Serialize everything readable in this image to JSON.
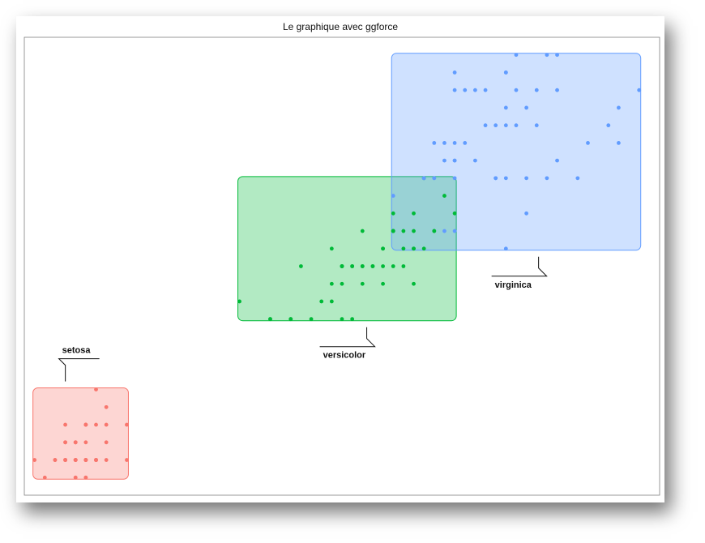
{
  "chart_data": {
    "type": "scatter",
    "title": "Le graphique avec ggforce",
    "xlabel": "",
    "ylabel": "",
    "xlim": [
      0.9,
      7.1
    ],
    "ylim": [
      0.0,
      2.6
    ],
    "grid": false,
    "legend": "none",
    "annotation": "labelled rectangle around each group",
    "series": [
      {
        "name": "setosa",
        "color": "#F8766D",
        "fill": "#F8766D",
        "label_position": "top-right",
        "points": [
          [
            1.4,
            0.2
          ],
          [
            1.4,
            0.2
          ],
          [
            1.3,
            0.2
          ],
          [
            1.5,
            0.2
          ],
          [
            1.4,
            0.2
          ],
          [
            1.7,
            0.4
          ],
          [
            1.4,
            0.3
          ],
          [
            1.5,
            0.2
          ],
          [
            1.4,
            0.2
          ],
          [
            1.5,
            0.1
          ],
          [
            1.5,
            0.2
          ],
          [
            1.6,
            0.2
          ],
          [
            1.4,
            0.1
          ],
          [
            1.1,
            0.1
          ],
          [
            1.2,
            0.2
          ],
          [
            1.5,
            0.4
          ],
          [
            1.3,
            0.4
          ],
          [
            1.4,
            0.3
          ],
          [
            1.7,
            0.3
          ],
          [
            1.5,
            0.3
          ],
          [
            1.7,
            0.2
          ],
          [
            1.5,
            0.4
          ],
          [
            1.0,
            0.2
          ],
          [
            1.7,
            0.5
          ],
          [
            1.9,
            0.2
          ],
          [
            1.6,
            0.2
          ],
          [
            1.6,
            0.4
          ],
          [
            1.5,
            0.2
          ],
          [
            1.4,
            0.2
          ],
          [
            1.6,
            0.2
          ],
          [
            1.6,
            0.2
          ],
          [
            1.5,
            0.4
          ],
          [
            1.5,
            0.1
          ],
          [
            1.4,
            0.2
          ],
          [
            1.5,
            0.2
          ],
          [
            1.2,
            0.2
          ],
          [
            1.3,
            0.2
          ],
          [
            1.4,
            0.1
          ],
          [
            1.3,
            0.2
          ],
          [
            1.5,
            0.2
          ],
          [
            1.3,
            0.3
          ],
          [
            1.3,
            0.3
          ],
          [
            1.3,
            0.2
          ],
          [
            1.6,
            0.6
          ],
          [
            1.9,
            0.4
          ],
          [
            1.4,
            0.3
          ],
          [
            1.6,
            0.2
          ],
          [
            1.4,
            0.2
          ],
          [
            1.5,
            0.2
          ],
          [
            1.4,
            0.2
          ]
        ]
      },
      {
        "name": "versicolor",
        "color": "#00BA38",
        "fill": "#00BA38",
        "label_position": "bottom",
        "points": [
          [
            4.7,
            1.4
          ],
          [
            4.5,
            1.5
          ],
          [
            4.9,
            1.5
          ],
          [
            4.0,
            1.3
          ],
          [
            4.6,
            1.5
          ],
          [
            4.5,
            1.3
          ],
          [
            4.7,
            1.6
          ],
          [
            3.3,
            1.0
          ],
          [
            4.6,
            1.3
          ],
          [
            3.9,
            1.4
          ],
          [
            3.5,
            1.0
          ],
          [
            4.2,
            1.5
          ],
          [
            4.0,
            1.0
          ],
          [
            4.7,
            1.4
          ],
          [
            3.6,
            1.3
          ],
          [
            4.4,
            1.4
          ],
          [
            4.5,
            1.5
          ],
          [
            4.1,
            1.0
          ],
          [
            4.5,
            1.5
          ],
          [
            3.9,
            1.1
          ],
          [
            4.8,
            1.8
          ],
          [
            4.0,
            1.3
          ],
          [
            4.9,
            1.5
          ],
          [
            4.7,
            1.2
          ],
          [
            4.3,
            1.3
          ],
          [
            4.4,
            1.4
          ],
          [
            4.8,
            1.4
          ],
          [
            5.0,
            1.7
          ],
          [
            4.5,
            1.5
          ],
          [
            3.5,
            1.0
          ],
          [
            3.8,
            1.1
          ],
          [
            3.7,
            1.0
          ],
          [
            3.9,
            1.2
          ],
          [
            5.1,
            1.6
          ],
          [
            4.5,
            1.5
          ],
          [
            4.5,
            1.6
          ],
          [
            4.7,
            1.5
          ],
          [
            4.4,
            1.3
          ],
          [
            4.1,
            1.3
          ],
          [
            4.0,
            1.3
          ],
          [
            4.4,
            1.2
          ],
          [
            4.6,
            1.4
          ],
          [
            4.0,
            1.2
          ],
          [
            3.3,
            1.0
          ],
          [
            4.2,
            1.3
          ],
          [
            4.2,
            1.2
          ],
          [
            4.2,
            1.3
          ],
          [
            4.3,
            1.3
          ],
          [
            3.0,
            1.1
          ],
          [
            4.1,
            1.3
          ]
        ]
      },
      {
        "name": "virginica",
        "color": "#619CFF",
        "fill": "#619CFF",
        "label_position": "bottom",
        "points": [
          [
            6.0,
            2.5
          ],
          [
            5.1,
            1.9
          ],
          [
            5.9,
            2.1
          ],
          [
            5.6,
            1.8
          ],
          [
            5.8,
            2.2
          ],
          [
            6.6,
            2.1
          ],
          [
            4.5,
            1.7
          ],
          [
            6.3,
            1.8
          ],
          [
            5.8,
            1.8
          ],
          [
            6.1,
            2.5
          ],
          [
            5.1,
            2.0
          ],
          [
            5.3,
            1.9
          ],
          [
            5.5,
            2.1
          ],
          [
            5.0,
            2.0
          ],
          [
            5.1,
            2.4
          ],
          [
            5.3,
            2.3
          ],
          [
            5.5,
            1.8
          ],
          [
            6.7,
            2.2
          ],
          [
            6.9,
            2.3
          ],
          [
            5.0,
            1.5
          ],
          [
            5.7,
            2.3
          ],
          [
            4.9,
            2.0
          ],
          [
            6.7,
            2.0
          ],
          [
            4.9,
            1.8
          ],
          [
            5.7,
            2.1
          ],
          [
            6.0,
            1.8
          ],
          [
            4.8,
            1.8
          ],
          [
            4.9,
            1.8
          ],
          [
            5.6,
            2.1
          ],
          [
            5.8,
            1.6
          ],
          [
            6.1,
            1.9
          ],
          [
            6.4,
            2.0
          ],
          [
            5.6,
            2.2
          ],
          [
            5.1,
            1.5
          ],
          [
            5.6,
            1.4
          ],
          [
            6.1,
            2.3
          ],
          [
            5.6,
            2.4
          ],
          [
            5.5,
            1.8
          ],
          [
            4.8,
            1.8
          ],
          [
            5.4,
            2.1
          ],
          [
            5.6,
            2.4
          ],
          [
            5.1,
            2.3
          ],
          [
            5.1,
            1.9
          ],
          [
            5.9,
            2.3
          ],
          [
            5.7,
            2.5
          ],
          [
            5.2,
            2.3
          ],
          [
            5.0,
            1.9
          ],
          [
            5.2,
            2.0
          ],
          [
            5.4,
            2.3
          ],
          [
            5.1,
            1.8
          ]
        ]
      }
    ]
  }
}
